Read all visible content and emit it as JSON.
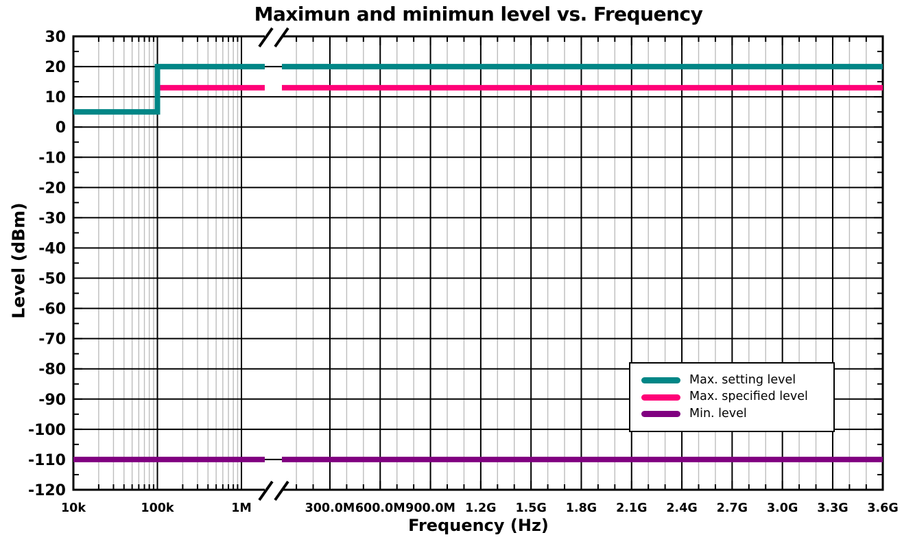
{
  "chart": {
    "title": "Maximun and minimun level vs. Frequency",
    "xlabel": "Frequency (Hz)",
    "ylabel": "Level (dBm)"
  },
  "legend": {
    "position": "inside middle-right",
    "items": [
      {
        "label": "Max. setting level",
        "color": "#008686"
      },
      {
        "label": "Max. specified level",
        "color": "#FF0077"
      },
      {
        "label": "Min. level",
        "color": "#800080"
      }
    ]
  },
  "chart_data": {
    "type": "line",
    "title": "Maximun and minimun level vs. Frequency",
    "xlabel": "Frequency (Hz)",
    "ylabel": "Level (dBm)",
    "x_axis": {
      "kind": "broken axis: logarithmic 10 kHz - 1 MHz, axis break, linear 100 MHz - 3.6 GHz",
      "log_segment": {
        "min_hz": 10000,
        "max_hz": 1000000,
        "tick_values_hz": [
          10000,
          100000,
          1000000
        ],
        "tick_labels": [
          "10k",
          "100k",
          "1M"
        ]
      },
      "linear_segment": {
        "min_hz": 100000000,
        "max_hz": 3600000000,
        "major_step_hz": 300000000,
        "minor_step_hz": 100000000,
        "tick_values_hz": [
          300000000,
          600000000,
          900000000,
          1200000000,
          1500000000,
          1800000000,
          2100000000,
          2400000000,
          2700000000,
          3000000000,
          3300000000,
          3600000000
        ],
        "tick_labels": [
          "300.0M",
          "600.0M",
          "900.0M",
          "1.2G",
          "1.5G",
          "1.8G",
          "2.1G",
          "2.4G",
          "2.7G",
          "3.0G",
          "3.3G",
          "3.6G"
        ]
      },
      "break_marker": "//"
    },
    "y_axis": {
      "min": -120,
      "max": 30,
      "major_step": 10,
      "minor_step": 5,
      "tick_labels": [
        "30",
        "20",
        "10",
        "0",
        "-10",
        "-20",
        "-30",
        "-40",
        "-50",
        "-60",
        "-70",
        "-80",
        "-90",
        "-100",
        "-110",
        "-120"
      ]
    },
    "grid": {
      "major_color": "#000000",
      "minor_color": "#bdbdbd",
      "note": "black major grid both directions; gray minor grid vertical only"
    },
    "series": [
      {
        "name": "Max. setting level",
        "color": "#008686",
        "points_hz_dbm": [
          [
            10000,
            5
          ],
          [
            100000,
            5
          ],
          [
            100000,
            20
          ],
          [
            3600000000,
            20
          ]
        ]
      },
      {
        "name": "Max. specified level",
        "color": "#FF0077",
        "points_hz_dbm": [
          [
            100000,
            13
          ],
          [
            3600000000,
            13
          ]
        ]
      },
      {
        "name": "Min. level",
        "color": "#800080",
        "points_hz_dbm": [
          [
            10000,
            -110
          ],
          [
            3600000000,
            -110
          ]
        ]
      }
    ],
    "legend_position": "inside middle-right"
  }
}
